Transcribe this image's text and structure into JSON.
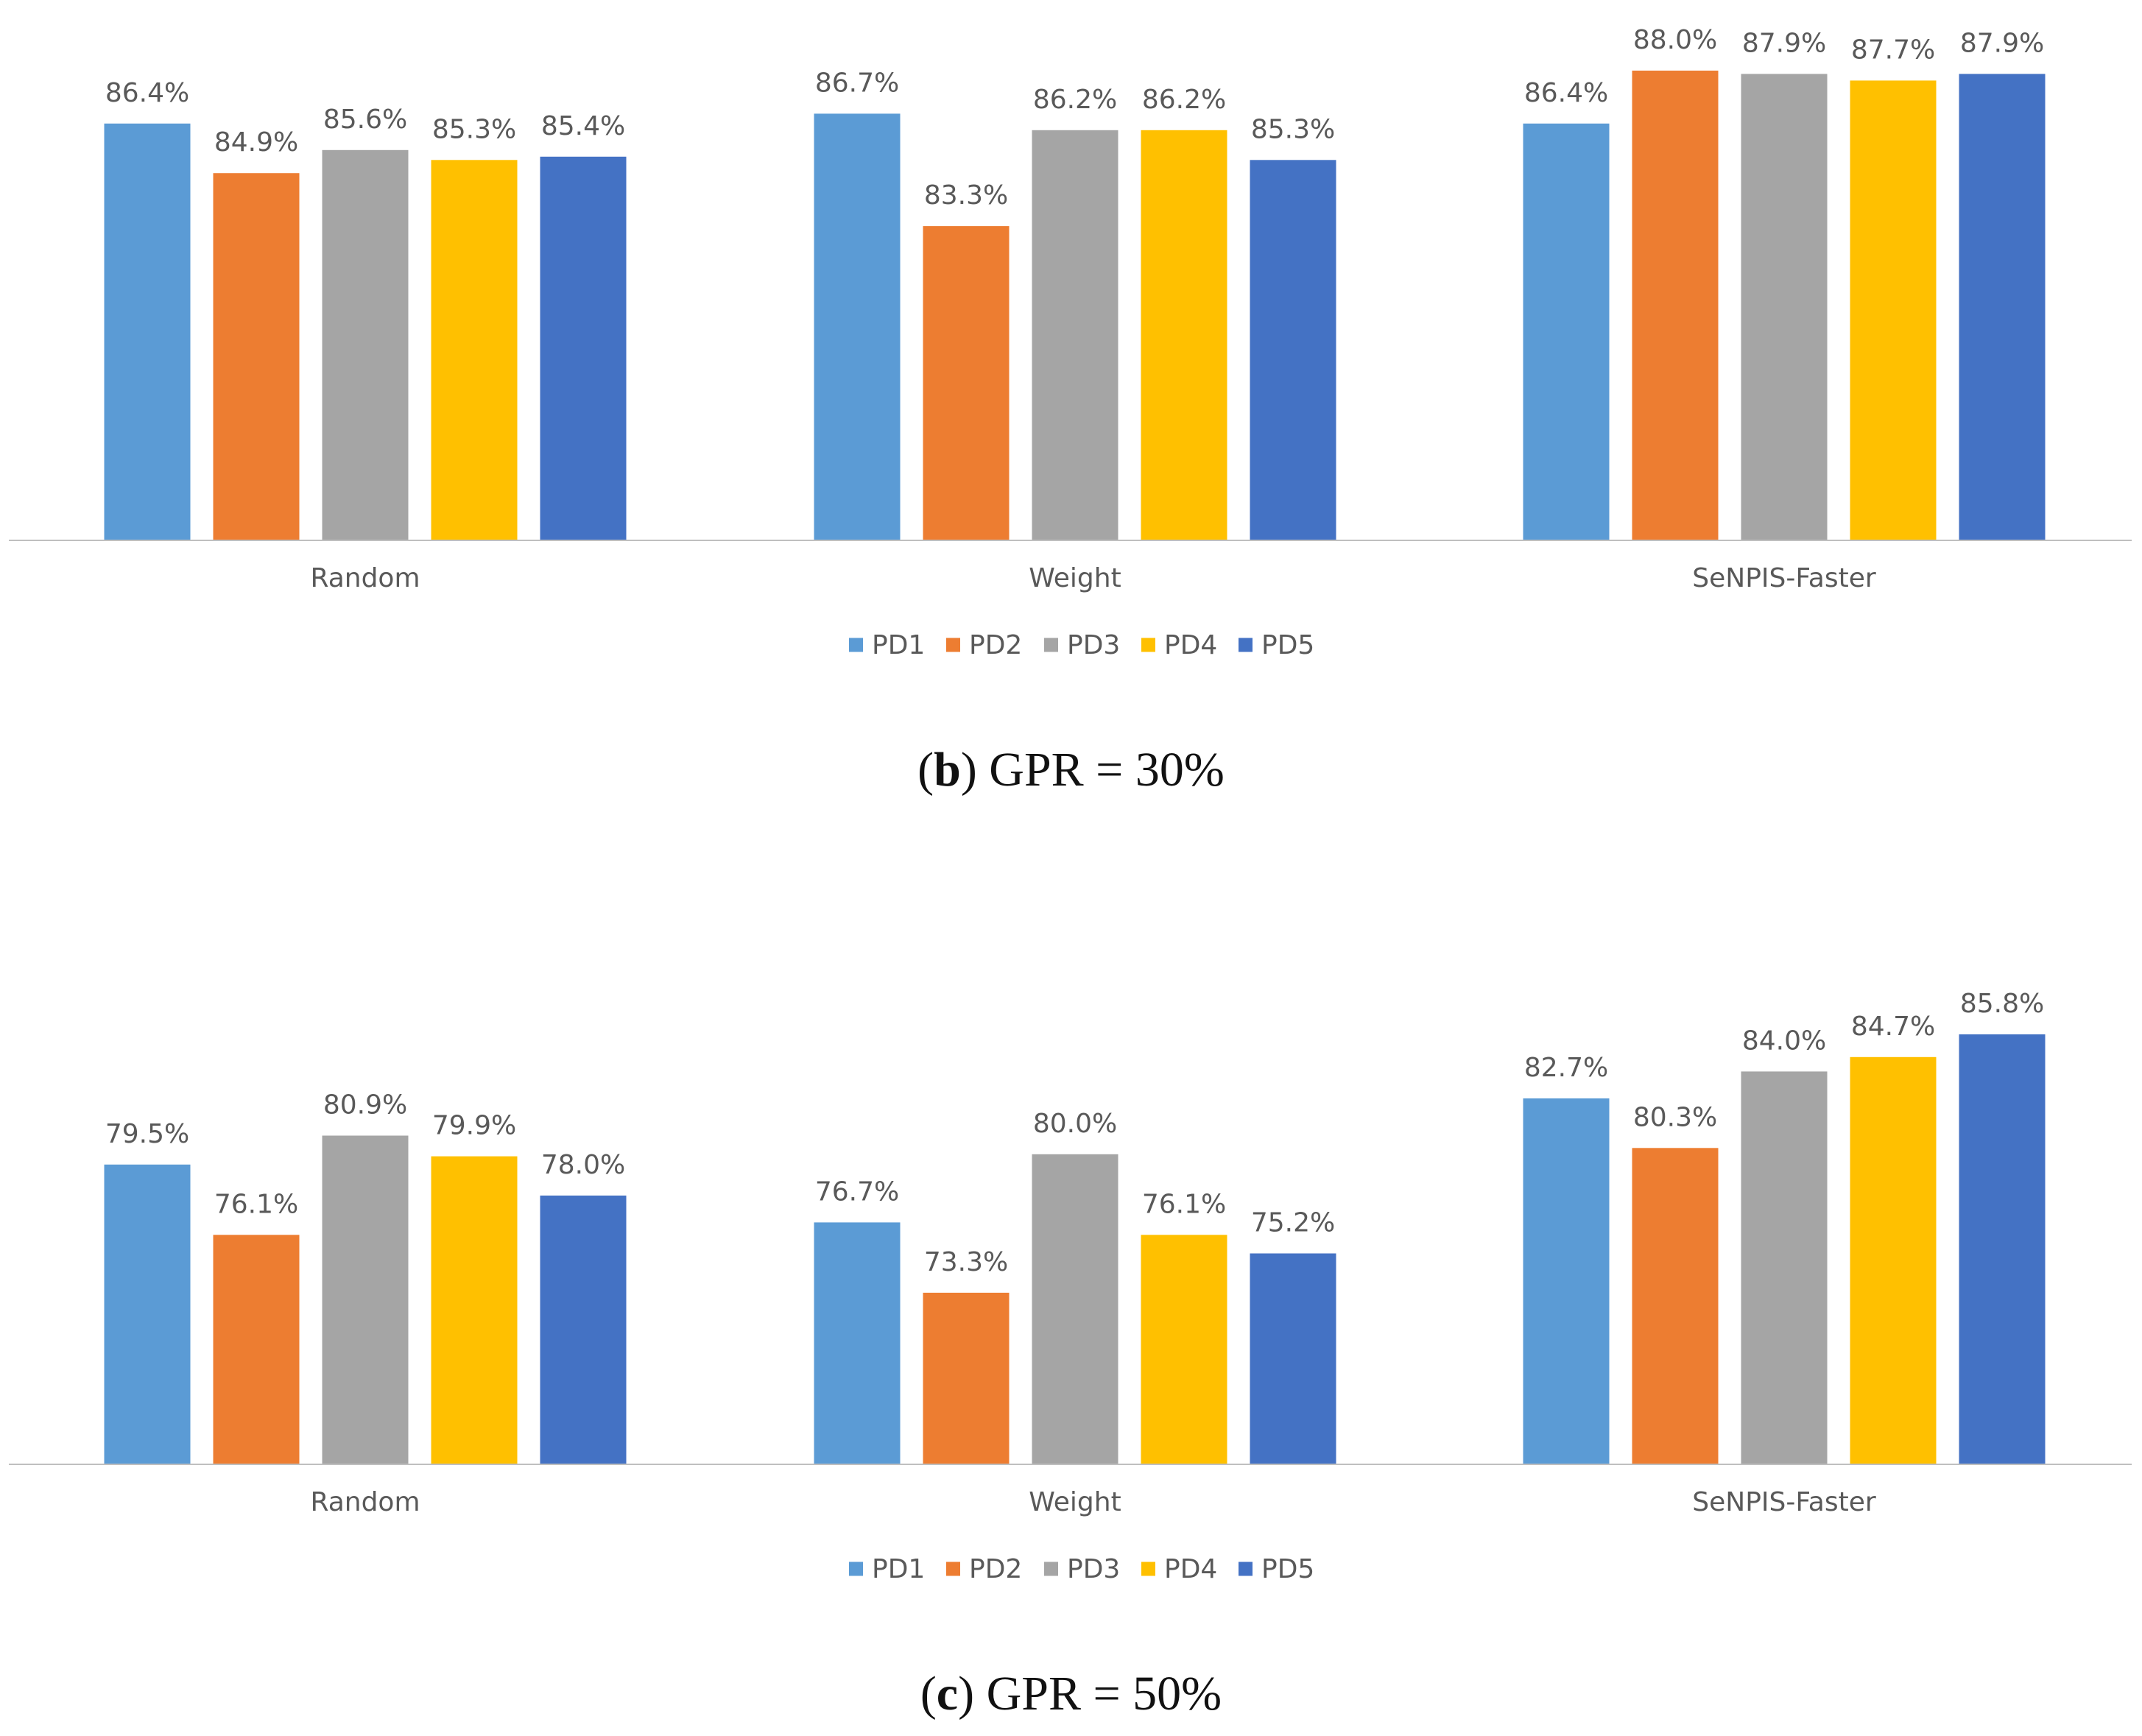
{
  "colors": {
    "PD1": "#5B9BD5",
    "PD2": "#ED7D31",
    "PD3": "#A5A5A5",
    "PD4": "#FFC000",
    "PD5": "#4472C4",
    "axis": "#BFBFBF",
    "text": "#595959"
  },
  "chart_data": [
    {
      "type": "bar",
      "categories": [
        "Random",
        "Weight",
        "SeNPIS-Faster"
      ],
      "series": [
        {
          "name": "PD1",
          "values": [
            86.4,
            86.7,
            86.4
          ]
        },
        {
          "name": "PD2",
          "values": [
            84.9,
            83.3,
            88.0
          ]
        },
        {
          "name": "PD3",
          "values": [
            85.6,
            86.2,
            87.9
          ]
        },
        {
          "name": "PD4",
          "values": [
            85.3,
            86.2,
            87.7
          ]
        },
        {
          "name": "PD5",
          "values": [
            85.4,
            85.3,
            87.9
          ]
        }
      ],
      "value_labels": [
        [
          "86.4%",
          "86.7%",
          "86.4%"
        ],
        [
          "84.9%",
          "83.3%",
          "88.0%"
        ],
        [
          "85.6%",
          "86.2%",
          "87.9%"
        ],
        [
          "85.3%",
          "86.2%",
          "87.7%"
        ],
        [
          "85.4%",
          "85.3%",
          "87.9%"
        ]
      ],
      "ylim": [
        73.8,
        88.8
      ],
      "legend_position": "bottom",
      "grid": false,
      "caption": {
        "letter": "b",
        "text": ") GPR = 30%"
      }
    },
    {
      "type": "bar",
      "categories": [
        "Random",
        "Weight",
        "SeNPIS-Faster"
      ],
      "series": [
        {
          "name": "PD1",
          "values": [
            79.5,
            76.7,
            82.7
          ]
        },
        {
          "name": "PD2",
          "values": [
            76.1,
            73.3,
            80.3
          ]
        },
        {
          "name": "PD3",
          "values": [
            80.9,
            80.0,
            84.0
          ]
        },
        {
          "name": "PD4",
          "values": [
            79.9,
            76.1,
            84.7
          ]
        },
        {
          "name": "PD5",
          "values": [
            78.0,
            75.2,
            85.8
          ]
        }
      ],
      "value_labels": [
        [
          "79.5%",
          "76.7%",
          "82.7%"
        ],
        [
          "76.1%",
          "73.3%",
          "80.3%"
        ],
        [
          "80.9%",
          "80.0%",
          "84.0%"
        ],
        [
          "79.9%",
          "76.1%",
          "84.7%"
        ],
        [
          "78.0%",
          "75.2%",
          "85.8%"
        ]
      ],
      "ylim": [
        65.0,
        89.0
      ],
      "legend_position": "bottom",
      "grid": false,
      "caption": {
        "letter": "c",
        "text": ") GPR = 50%"
      }
    }
  ]
}
